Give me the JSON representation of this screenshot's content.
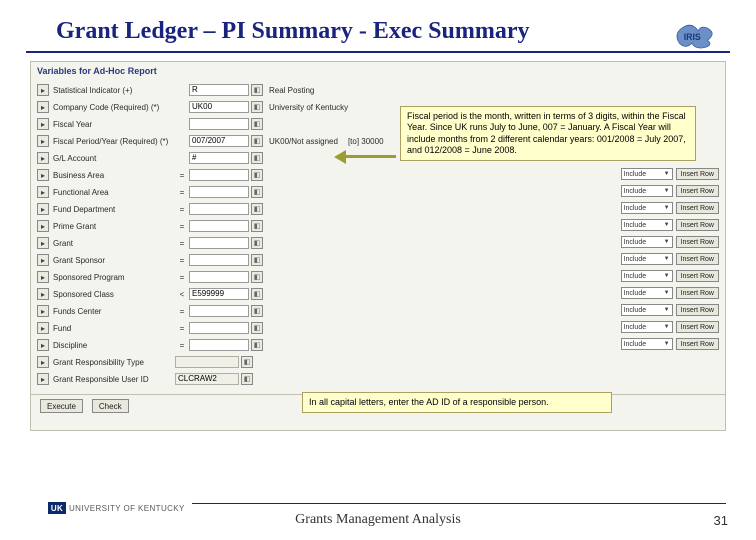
{
  "title": "Grant Ledger – PI Summary - Exec Summary",
  "logo_text": "IRIS",
  "panel_header": "Variables for Ad-Hoc Report",
  "rows": [
    {
      "label": "Statistical Indicator (+)",
      "op": "",
      "val": "R",
      "disp": "Real Posting",
      "type": "short"
    },
    {
      "label": "Company Code (Required) (*)",
      "op": "",
      "val": "UK00",
      "disp": "University of Kentucky",
      "type": "short"
    },
    {
      "label": "Fiscal Year",
      "op": "",
      "val": "",
      "disp": "",
      "type": "short"
    },
    {
      "label": "Fiscal Period/Year (Required) (*)",
      "op": "",
      "val": "007/2007",
      "disp": "UK00/Not assigned",
      "type": "short",
      "extra": "30000"
    },
    {
      "label": "G/L Account",
      "op": "",
      "val": "#",
      "disp": "",
      "type": "short"
    },
    {
      "label": "Business Area",
      "op": "=",
      "val": "",
      "disp": "",
      "type": "include",
      "insert": true
    },
    {
      "label": "Functional Area",
      "op": "=",
      "val": "",
      "disp": "",
      "type": "include",
      "insert": true
    },
    {
      "label": "Fund Department",
      "op": "=",
      "val": "",
      "disp": "",
      "type": "include",
      "insert": true
    },
    {
      "label": "Prime Grant",
      "op": "=",
      "val": "",
      "disp": "",
      "type": "include",
      "insert": true
    },
    {
      "label": "Grant",
      "op": "=",
      "val": "",
      "disp": "",
      "type": "include",
      "insert": true
    },
    {
      "label": "Grant Sponsor",
      "op": "=",
      "val": "",
      "disp": "",
      "type": "include",
      "insert": true
    },
    {
      "label": "Sponsored Program",
      "op": "=",
      "val": "",
      "disp": "",
      "type": "include",
      "insert": true
    },
    {
      "label": "Sponsored Class",
      "op": "<",
      "val": "E599999",
      "disp": "",
      "type": "include",
      "insert": true
    },
    {
      "label": "Funds Center",
      "op": "=",
      "val": "",
      "disp": "",
      "type": "include",
      "insert": true
    },
    {
      "label": "Fund",
      "op": "=",
      "val": "",
      "disp": "",
      "type": "include",
      "insert": true
    },
    {
      "label": "Discipline",
      "op": "=",
      "val": "",
      "disp": "",
      "type": "include",
      "insert": true
    },
    {
      "label": "Grant Responsibility Type",
      "op": "",
      "val": "",
      "disp": "",
      "type": "readonly"
    },
    {
      "label": "Grant Responsible User ID",
      "op": "",
      "val": "CLCRAW2",
      "disp": "",
      "type": "readonly"
    }
  ],
  "include_label": "Include",
  "insert_label": "Insert Row",
  "footer_buttons": {
    "exec": "Execute",
    "check": "Check"
  },
  "callout1": "Fiscal period is the month, written in terms of 3 digits, within the Fiscal Year. Since UK runs July to June, 007 = January. A Fiscal Year will include months from 2 different calendar years: 001/2008 = July 2007, and 012/2008 = June 2008.",
  "callout2": "In all capital letters, enter the AD ID of a responsible person.",
  "footer_text": "Grants Management Analysis",
  "page_number": "31",
  "uk_text": "UNIVERSITY OF KENTUCKY"
}
